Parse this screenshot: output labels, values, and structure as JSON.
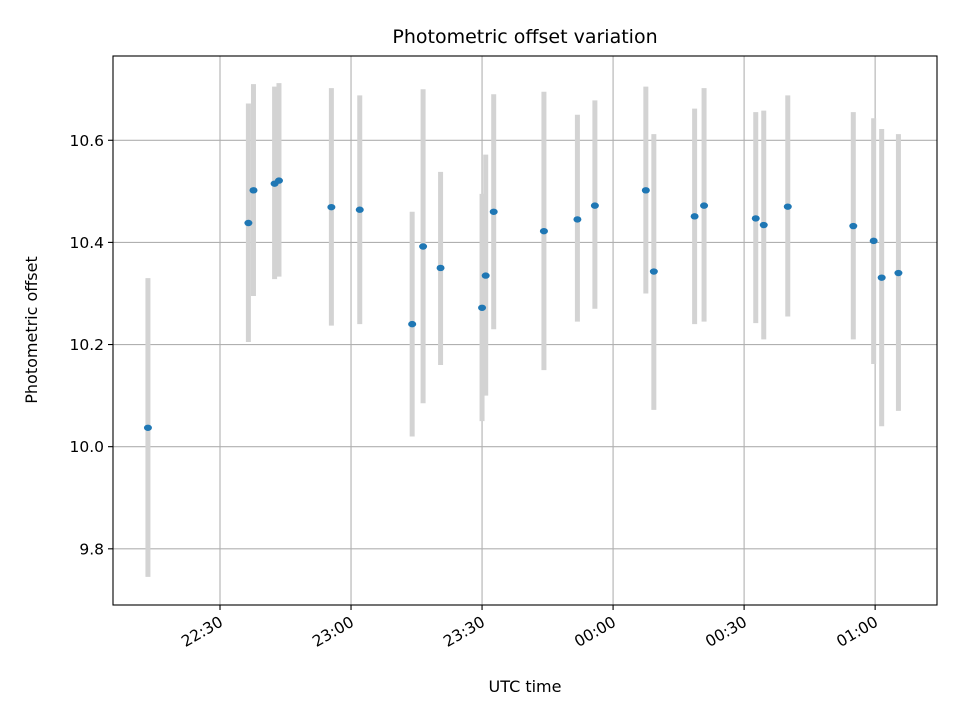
{
  "chart_data": {
    "type": "scatter",
    "title": "Photometric offset variation",
    "xlabel": "UTC time",
    "ylabel": "Photometric offset",
    "x_ticks": [
      "22:30",
      "23:00",
      "23:30",
      "00:00",
      "00:30",
      "01:00"
    ],
    "y_ticks": [
      "9.8",
      "10.0",
      "10.2",
      "10.4",
      "10.6"
    ],
    "ylim": [
      9.69,
      10.765
    ],
    "xlim": [
      "22:05:30",
      "01:14:10"
    ],
    "grid": true,
    "colors": {
      "point": "#1f77b4",
      "errorbar": "#d3d3d3",
      "grid": "#b0b0b0"
    },
    "points": [
      {
        "t": "22:13:30",
        "y": 10.037,
        "lo": 9.745,
        "hi": 10.33
      },
      {
        "t": "22:36:30",
        "y": 10.438,
        "lo": 10.205,
        "hi": 10.672
      },
      {
        "t": "22:37:40",
        "y": 10.502,
        "lo": 10.295,
        "hi": 10.71
      },
      {
        "t": "22:42:30",
        "y": 10.515,
        "lo": 10.328,
        "hi": 10.705
      },
      {
        "t": "22:43:30",
        "y": 10.521,
        "lo": 10.333,
        "hi": 10.712
      },
      {
        "t": "22:55:30",
        "y": 10.469,
        "lo": 10.237,
        "hi": 10.702
      },
      {
        "t": "23:02:00",
        "y": 10.464,
        "lo": 10.24,
        "hi": 10.688
      },
      {
        "t": "23:14:00",
        "y": 10.24,
        "lo": 10.02,
        "hi": 10.46
      },
      {
        "t": "23:16:30",
        "y": 10.392,
        "lo": 10.085,
        "hi": 10.7
      },
      {
        "t": "23:20:30",
        "y": 10.35,
        "lo": 10.16,
        "hi": 10.538
      },
      {
        "t": "23:30:00",
        "y": 10.272,
        "lo": 10.05,
        "hi": 10.495
      },
      {
        "t": "23:30:50",
        "y": 10.335,
        "lo": 10.1,
        "hi": 10.572
      },
      {
        "t": "23:32:40",
        "y": 10.46,
        "lo": 10.23,
        "hi": 10.69
      },
      {
        "t": "23:44:10",
        "y": 10.422,
        "lo": 10.15,
        "hi": 10.695
      },
      {
        "t": "23:51:50",
        "y": 10.445,
        "lo": 10.245,
        "hi": 10.65
      },
      {
        "t": "23:55:50",
        "y": 10.472,
        "lo": 10.27,
        "hi": 10.678
      },
      {
        "t": "00:07:30",
        "y": 10.502,
        "lo": 10.3,
        "hi": 10.705
      },
      {
        "t": "00:09:20",
        "y": 10.343,
        "lo": 10.072,
        "hi": 10.612
      },
      {
        "t": "00:18:40",
        "y": 10.451,
        "lo": 10.24,
        "hi": 10.662
      },
      {
        "t": "00:20:50",
        "y": 10.472,
        "lo": 10.245,
        "hi": 10.702
      },
      {
        "t": "00:32:40",
        "y": 10.447,
        "lo": 10.242,
        "hi": 10.655
      },
      {
        "t": "00:34:30",
        "y": 10.434,
        "lo": 10.21,
        "hi": 10.658
      },
      {
        "t": "00:40:00",
        "y": 10.47,
        "lo": 10.255,
        "hi": 10.688
      },
      {
        "t": "00:55:00",
        "y": 10.432,
        "lo": 10.21,
        "hi": 10.655
      },
      {
        "t": "00:59:40",
        "y": 10.403,
        "lo": 10.162,
        "hi": 10.643
      },
      {
        "t": "01:01:30",
        "y": 10.331,
        "lo": 10.04,
        "hi": 10.622
      },
      {
        "t": "01:05:20",
        "y": 10.34,
        "lo": 10.07,
        "hi": 10.612
      }
    ]
  }
}
